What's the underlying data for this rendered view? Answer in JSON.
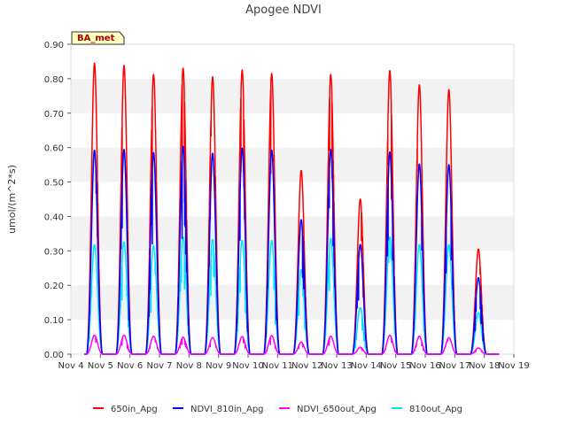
{
  "chart_data": {
    "type": "line",
    "title": "Apogee NDVI",
    "xlabel": "",
    "ylabel": "umol/(m^2*s)",
    "ylim": [
      0,
      0.9
    ],
    "xlim": [
      4,
      19
    ],
    "yticks": [
      0.0,
      0.1,
      0.2,
      0.3,
      0.4,
      0.5,
      0.6,
      0.7,
      0.8,
      0.9
    ],
    "ytick_labels": [
      "0.00",
      "0.10",
      "0.20",
      "0.30",
      "0.40",
      "0.50",
      "0.60",
      "0.70",
      "0.80",
      "0.90"
    ],
    "xticks": [
      4,
      5,
      6,
      7,
      8,
      9,
      10,
      11,
      12,
      13,
      14,
      15,
      16,
      17,
      18,
      19
    ],
    "xtick_labels": [
      "Nov 4",
      "Nov 5",
      "Nov 6",
      "Nov 7",
      "Nov 8",
      "Nov 9",
      "Nov 10",
      "Nov 11",
      "Nov 12",
      "Nov 13",
      "Nov 14",
      "Nov 15",
      "Nov 16",
      "Nov 17",
      "Nov 18",
      "Nov 19"
    ],
    "grid": "horizontal bands",
    "legend": "bottom",
    "annotation": "BA_met",
    "day_centers": [
      4.8,
      5.8,
      6.8,
      7.8,
      8.8,
      9.8,
      10.8,
      11.8,
      12.8,
      13.8,
      14.8,
      15.8,
      16.8,
      17.8
    ],
    "series": [
      {
        "name": "650in_Apg",
        "color": "#ff0000",
        "values": [
          0.845,
          0.838,
          0.812,
          0.83,
          0.805,
          0.825,
          0.815,
          0.533,
          0.812,
          0.45,
          0.823,
          0.782,
          0.768,
          0.305
        ]
      },
      {
        "name": "NDVI_810in_Apg",
        "color": "#0000ff",
        "values": [
          0.592,
          0.594,
          0.585,
          0.603,
          0.583,
          0.598,
          0.592,
          0.39,
          0.594,
          0.318,
          0.587,
          0.552,
          0.55,
          0.222
        ]
      },
      {
        "name": "NDVI_650out_Apg",
        "color": "#ff00ff",
        "values": [
          0.055,
          0.055,
          0.052,
          0.049,
          0.048,
          0.051,
          0.054,
          0.035,
          0.052,
          0.02,
          0.055,
          0.052,
          0.048,
          0.018
        ]
      },
      {
        "name": "810out_Apg",
        "color": "#00e5ff",
        "values": [
          0.318,
          0.325,
          0.315,
          0.34,
          0.333,
          0.33,
          0.33,
          0.245,
          0.336,
          0.135,
          0.34,
          0.318,
          0.318,
          0.12
        ]
      }
    ]
  }
}
